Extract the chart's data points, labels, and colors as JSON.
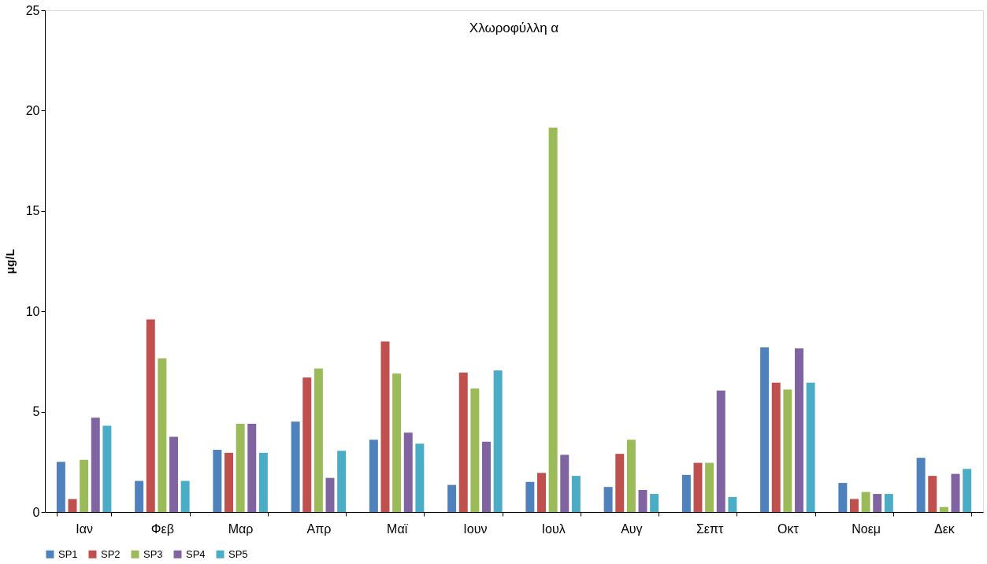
{
  "chart_data": {
    "type": "bar",
    "title": "Χλωροφύλλη α",
    "ylabel": "μg/L",
    "categories": [
      "Ιαν",
      "Φεβ",
      "Μαρ",
      "Απρ",
      "Μαϊ",
      "Ιουν",
      "Ιουλ",
      "Αυγ",
      "Σεπτ",
      "Οκτ",
      "Νοεμ",
      "Δεκ"
    ],
    "series": [
      {
        "name": "SP1",
        "color": "#4f81bd",
        "values": [
          2.5,
          1.55,
          3.1,
          4.5,
          3.6,
          1.35,
          1.5,
          1.25,
          1.85,
          8.2,
          1.45,
          2.7
        ]
      },
      {
        "name": "SP2",
        "color": "#c0504d",
        "values": [
          0.65,
          9.6,
          2.95,
          6.7,
          8.5,
          6.95,
          1.95,
          2.9,
          2.45,
          6.45,
          0.65,
          1.8
        ]
      },
      {
        "name": "SP3",
        "color": "#9bbb59",
        "values": [
          2.6,
          7.65,
          4.4,
          7.15,
          6.9,
          6.15,
          19.15,
          3.6,
          2.45,
          6.1,
          1.0,
          0.25
        ]
      },
      {
        "name": "SP4",
        "color": "#8064a2",
        "values": [
          4.7,
          3.75,
          4.4,
          1.7,
          3.95,
          3.5,
          2.85,
          1.1,
          6.05,
          8.15,
          0.9,
          1.9
        ]
      },
      {
        "name": "SP5",
        "color": "#4bacc6",
        "values": [
          4.3,
          1.55,
          2.95,
          3.05,
          3.4,
          7.05,
          1.8,
          0.9,
          0.75,
          6.45,
          0.9,
          2.15
        ]
      }
    ],
    "ylim": [
      0,
      25
    ],
    "yticks": [
      0,
      5,
      10,
      15,
      20,
      25
    ],
    "grid": false,
    "legend": "bottom"
  }
}
